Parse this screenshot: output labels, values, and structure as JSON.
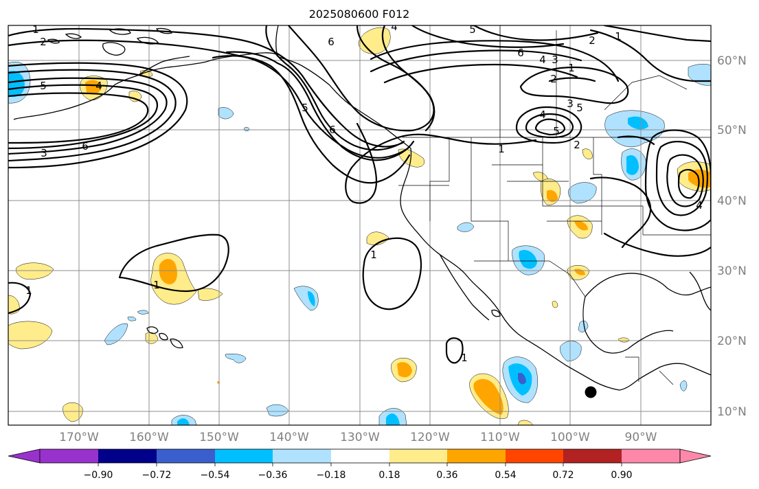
{
  "title": "2025080600 F012",
  "colors": {
    "neg_extreme": "#9932cc",
    "neg_090": "#00008b",
    "neg_072": "#3a5fcd",
    "neg_054": "#00bfff",
    "neg_036": "#b0e2ff",
    "neutral": "#ffffff",
    "pos_018": "#ffec8b",
    "pos_036": "#ffa500",
    "pos_054": "#ff4500",
    "pos_072": "#b22222",
    "pos_extreme": "#ff88aa"
  },
  "lon_labels": [
    "170°W",
    "160°W",
    "150°W",
    "140°W",
    "130°W",
    "120°W",
    "110°W",
    "100°W",
    "90°W"
  ],
  "lat_labels": [
    "60°N",
    "50°N",
    "40°N",
    "30°N",
    "20°N",
    "10°N"
  ],
  "colorbar": {
    "ticks": [
      "−0.90",
      "−0.72",
      "−0.54",
      "−0.36",
      "−0.18",
      "0.18",
      "0.36",
      "0.54",
      "0.72",
      "0.90"
    ]
  },
  "contour_labels": [
    "1",
    "2",
    "3",
    "4",
    "5",
    "6"
  ],
  "marker": "black-dot"
}
